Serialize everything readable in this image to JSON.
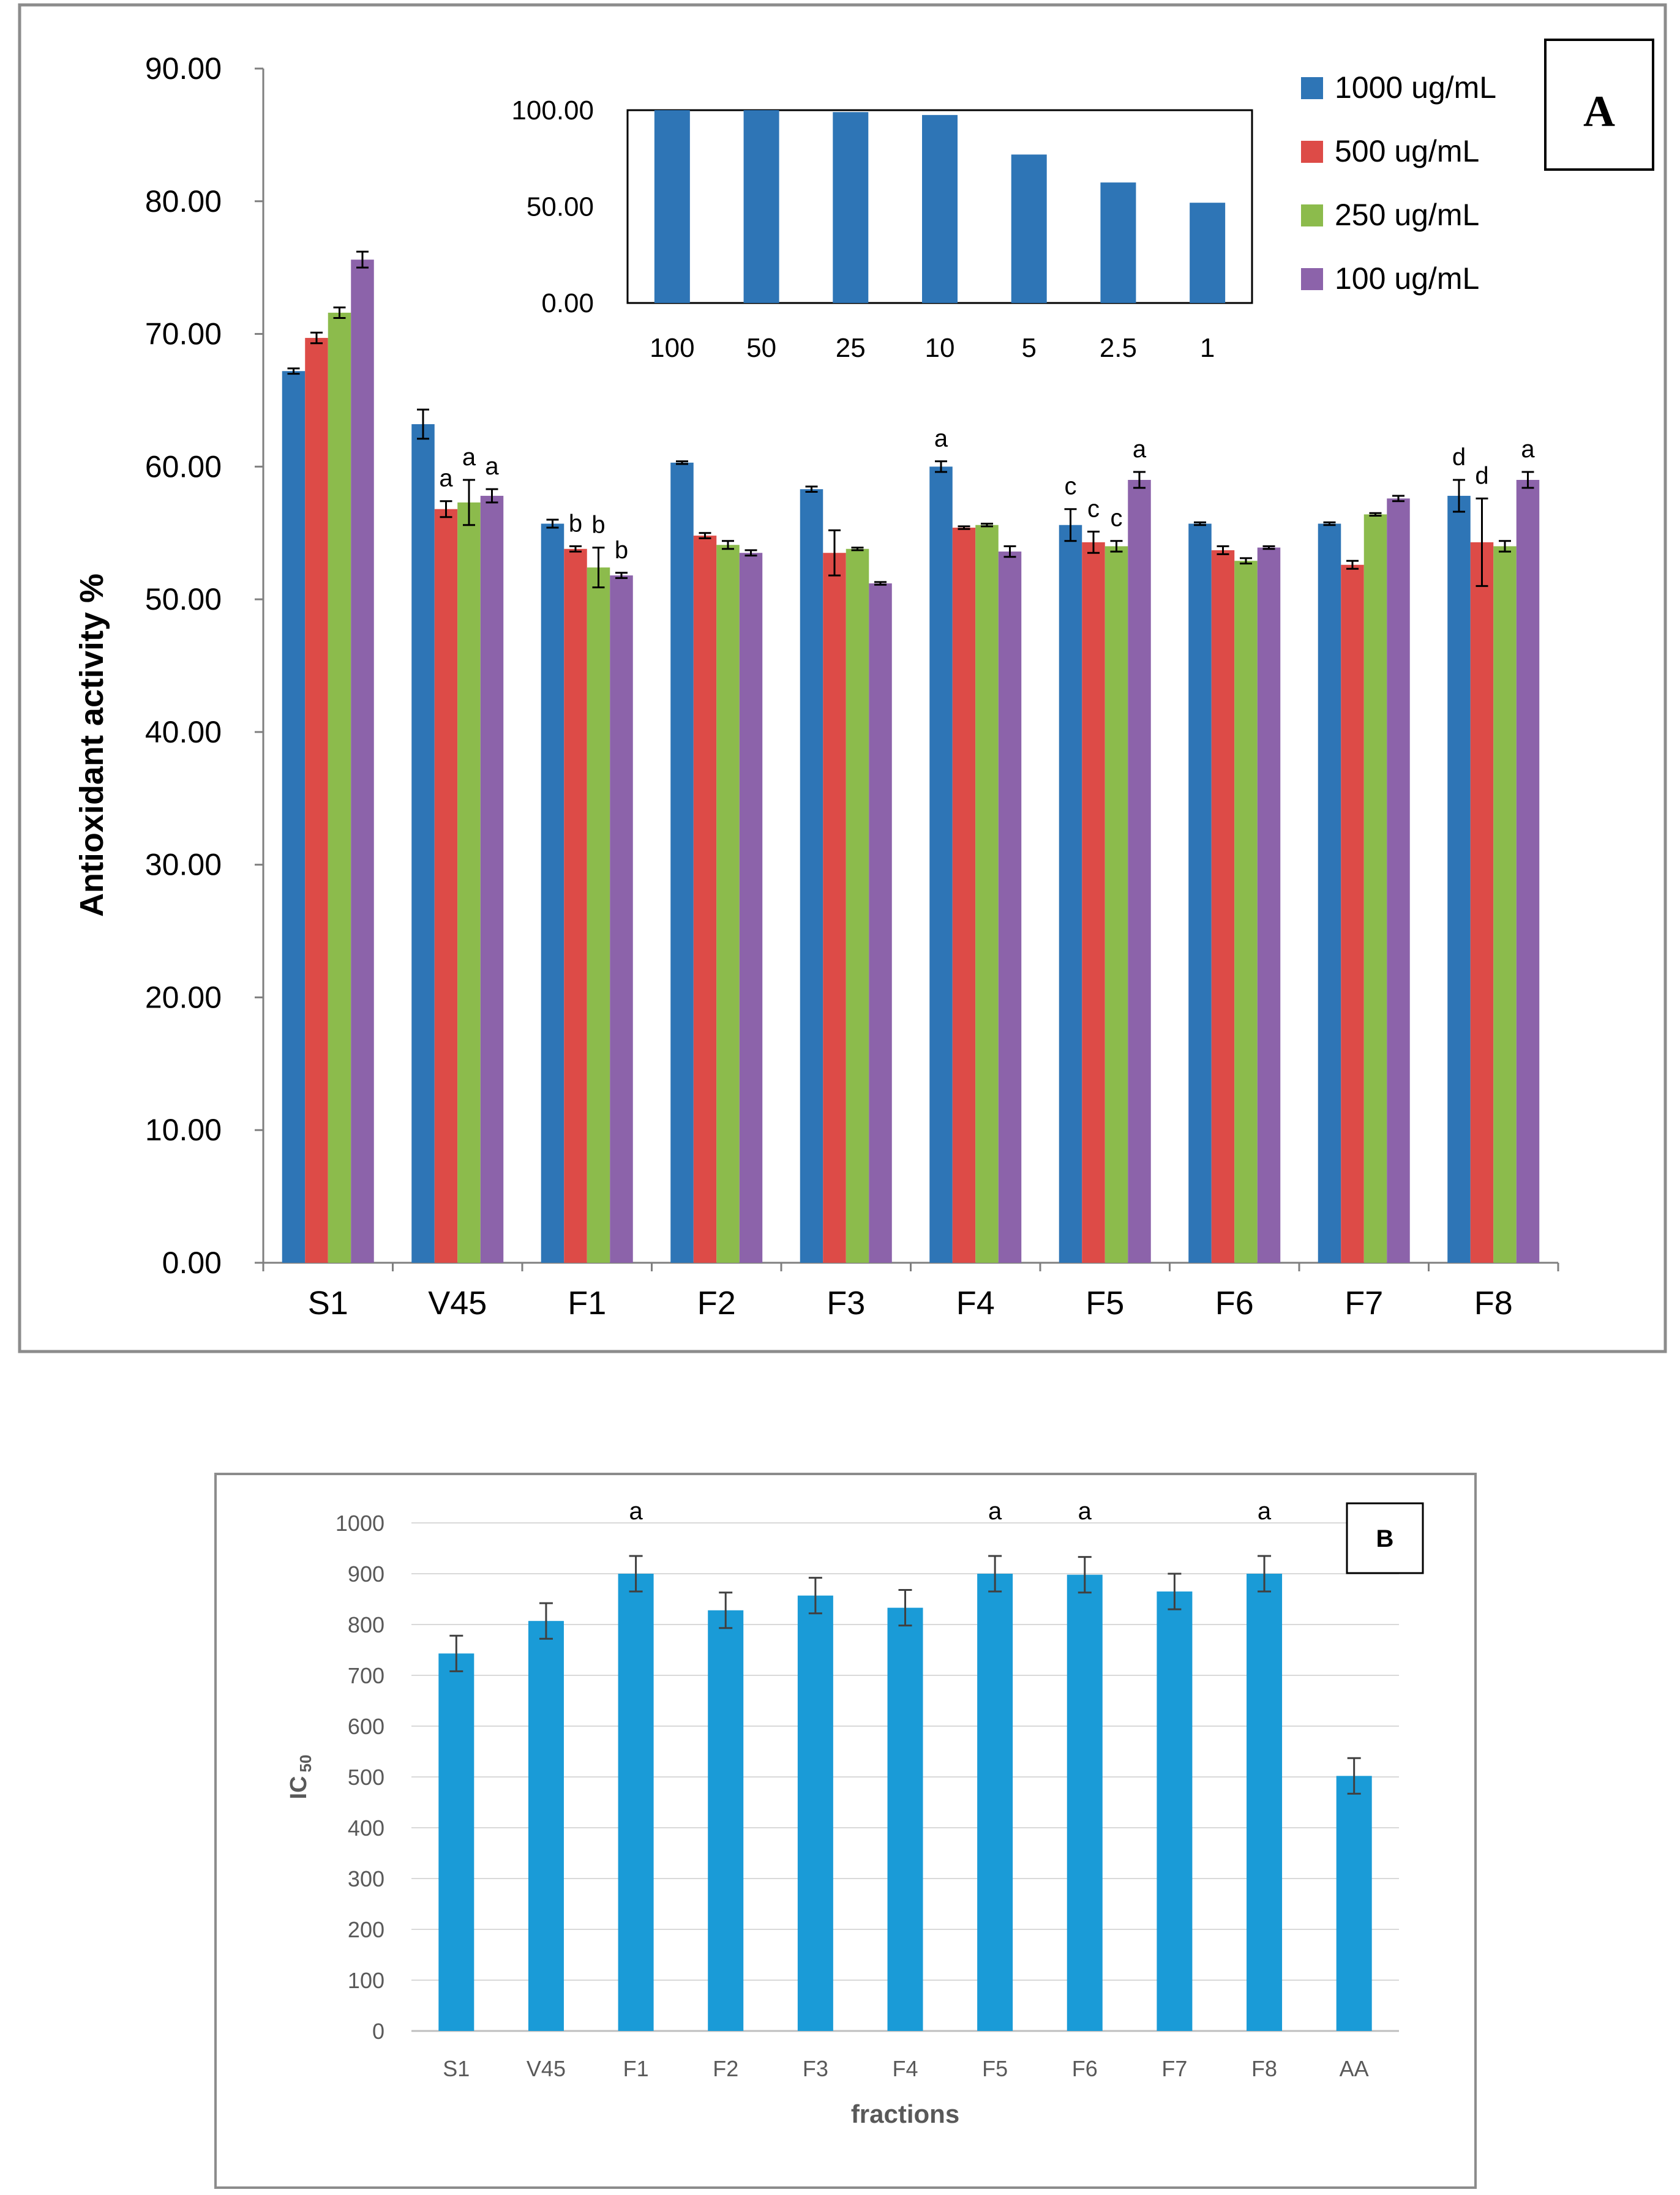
{
  "chart_data": [
    {
      "panel": "A",
      "type": "bar",
      "title": "",
      "xlabel": "",
      "ylabel": "Antioxidant activity %",
      "ylim": [
        0,
        90
      ],
      "yticks": [
        "0.00",
        "10.00",
        "20.00",
        "30.00",
        "40.00",
        "50.00",
        "60.00",
        "70.00",
        "80.00",
        "90.00"
      ],
      "categories": [
        "S1",
        "V45",
        "F1",
        "F2",
        "F3",
        "F4",
        "F5",
        "F6",
        "F7",
        "F8"
      ],
      "series": [
        {
          "name": "1000 ug/mL",
          "color": "#2e75b6",
          "values": [
            67.2,
            63.2,
            55.7,
            60.3,
            58.3,
            60.0,
            55.6,
            55.7,
            55.7,
            57.8
          ],
          "errors": [
            0.2,
            1.1,
            0.3,
            0.1,
            0.2,
            0.4,
            1.2,
            0.1,
            0.1,
            1.2
          ],
          "labels": [
            "",
            "",
            "",
            "",
            "",
            "a",
            "c",
            "",
            "",
            "d"
          ]
        },
        {
          "name": "500 ug/mL",
          "color": "#dd4b47",
          "values": [
            69.7,
            56.8,
            53.8,
            54.8,
            53.5,
            55.4,
            54.3,
            53.7,
            52.6,
            54.3
          ],
          "errors": [
            0.4,
            0.6,
            0.2,
            0.2,
            1.7,
            0.1,
            0.8,
            0.3,
            0.3,
            3.3
          ],
          "labels": [
            "",
            "a",
            "b",
            "",
            "",
            "",
            "c",
            "",
            "",
            "d"
          ]
        },
        {
          "name": "250 ug/mL",
          "color": "#8cbb4c",
          "values": [
            71.6,
            57.3,
            52.4,
            54.1,
            53.8,
            55.6,
            54.0,
            52.9,
            56.4,
            54.0
          ],
          "errors": [
            0.4,
            1.7,
            1.5,
            0.3,
            0.1,
            0.1,
            0.4,
            0.2,
            0.1,
            0.4
          ],
          "labels": [
            "",
            "a",
            "b",
            "",
            "",
            "",
            "c",
            "",
            "",
            ""
          ]
        },
        {
          "name": "100 ug/mL",
          "color": "#8c63aa",
          "values": [
            75.6,
            57.8,
            51.8,
            53.5,
            51.2,
            53.6,
            59.0,
            53.9,
            57.6,
            59.0
          ],
          "errors": [
            0.6,
            0.5,
            0.2,
            0.2,
            0.1,
            0.4,
            0.6,
            0.1,
            0.2,
            0.6
          ],
          "labels": [
            "",
            "a",
            "b",
            "",
            "",
            "",
            "a",
            "",
            "",
            "a"
          ]
        }
      ],
      "legend_position": "top-right",
      "panel_label": "A",
      "inset": {
        "type": "bar",
        "categories": [
          "100",
          "50",
          "25",
          "10",
          "5",
          "2.5",
          "1"
        ],
        "values": [
          100.0,
          100.0,
          99.0,
          97.5,
          77.0,
          62.5,
          52.0
        ],
        "ylim": [
          0,
          100
        ],
        "yticks": [
          "0.00",
          "50.00",
          "100.00"
        ],
        "color": "#2e75b6"
      }
    },
    {
      "panel": "B",
      "type": "bar",
      "title": "",
      "xlabel": "fractions",
      "ylabel": "IC",
      "ylabel_subscript": "50",
      "ylim": [
        0,
        1000
      ],
      "yticks": [
        "0",
        "100",
        "200",
        "300",
        "400",
        "500",
        "600",
        "700",
        "800",
        "900",
        "1000"
      ],
      "categories": [
        "S1",
        "V45",
        "F1",
        "F2",
        "F3",
        "F4",
        "F5",
        "F6",
        "F7",
        "F8",
        "AA"
      ],
      "values": [
        743,
        807,
        900,
        828,
        857,
        833,
        900,
        898,
        865,
        900,
        502
      ],
      "errors": [
        35,
        35,
        35,
        35,
        35,
        35,
        35,
        35,
        35,
        35,
        35
      ],
      "labels": [
        "",
        "",
        "a",
        "",
        "",
        "",
        "a",
        "a",
        "",
        "a",
        ""
      ],
      "color": "#1a9bd7",
      "panel_label": "B"
    }
  ]
}
